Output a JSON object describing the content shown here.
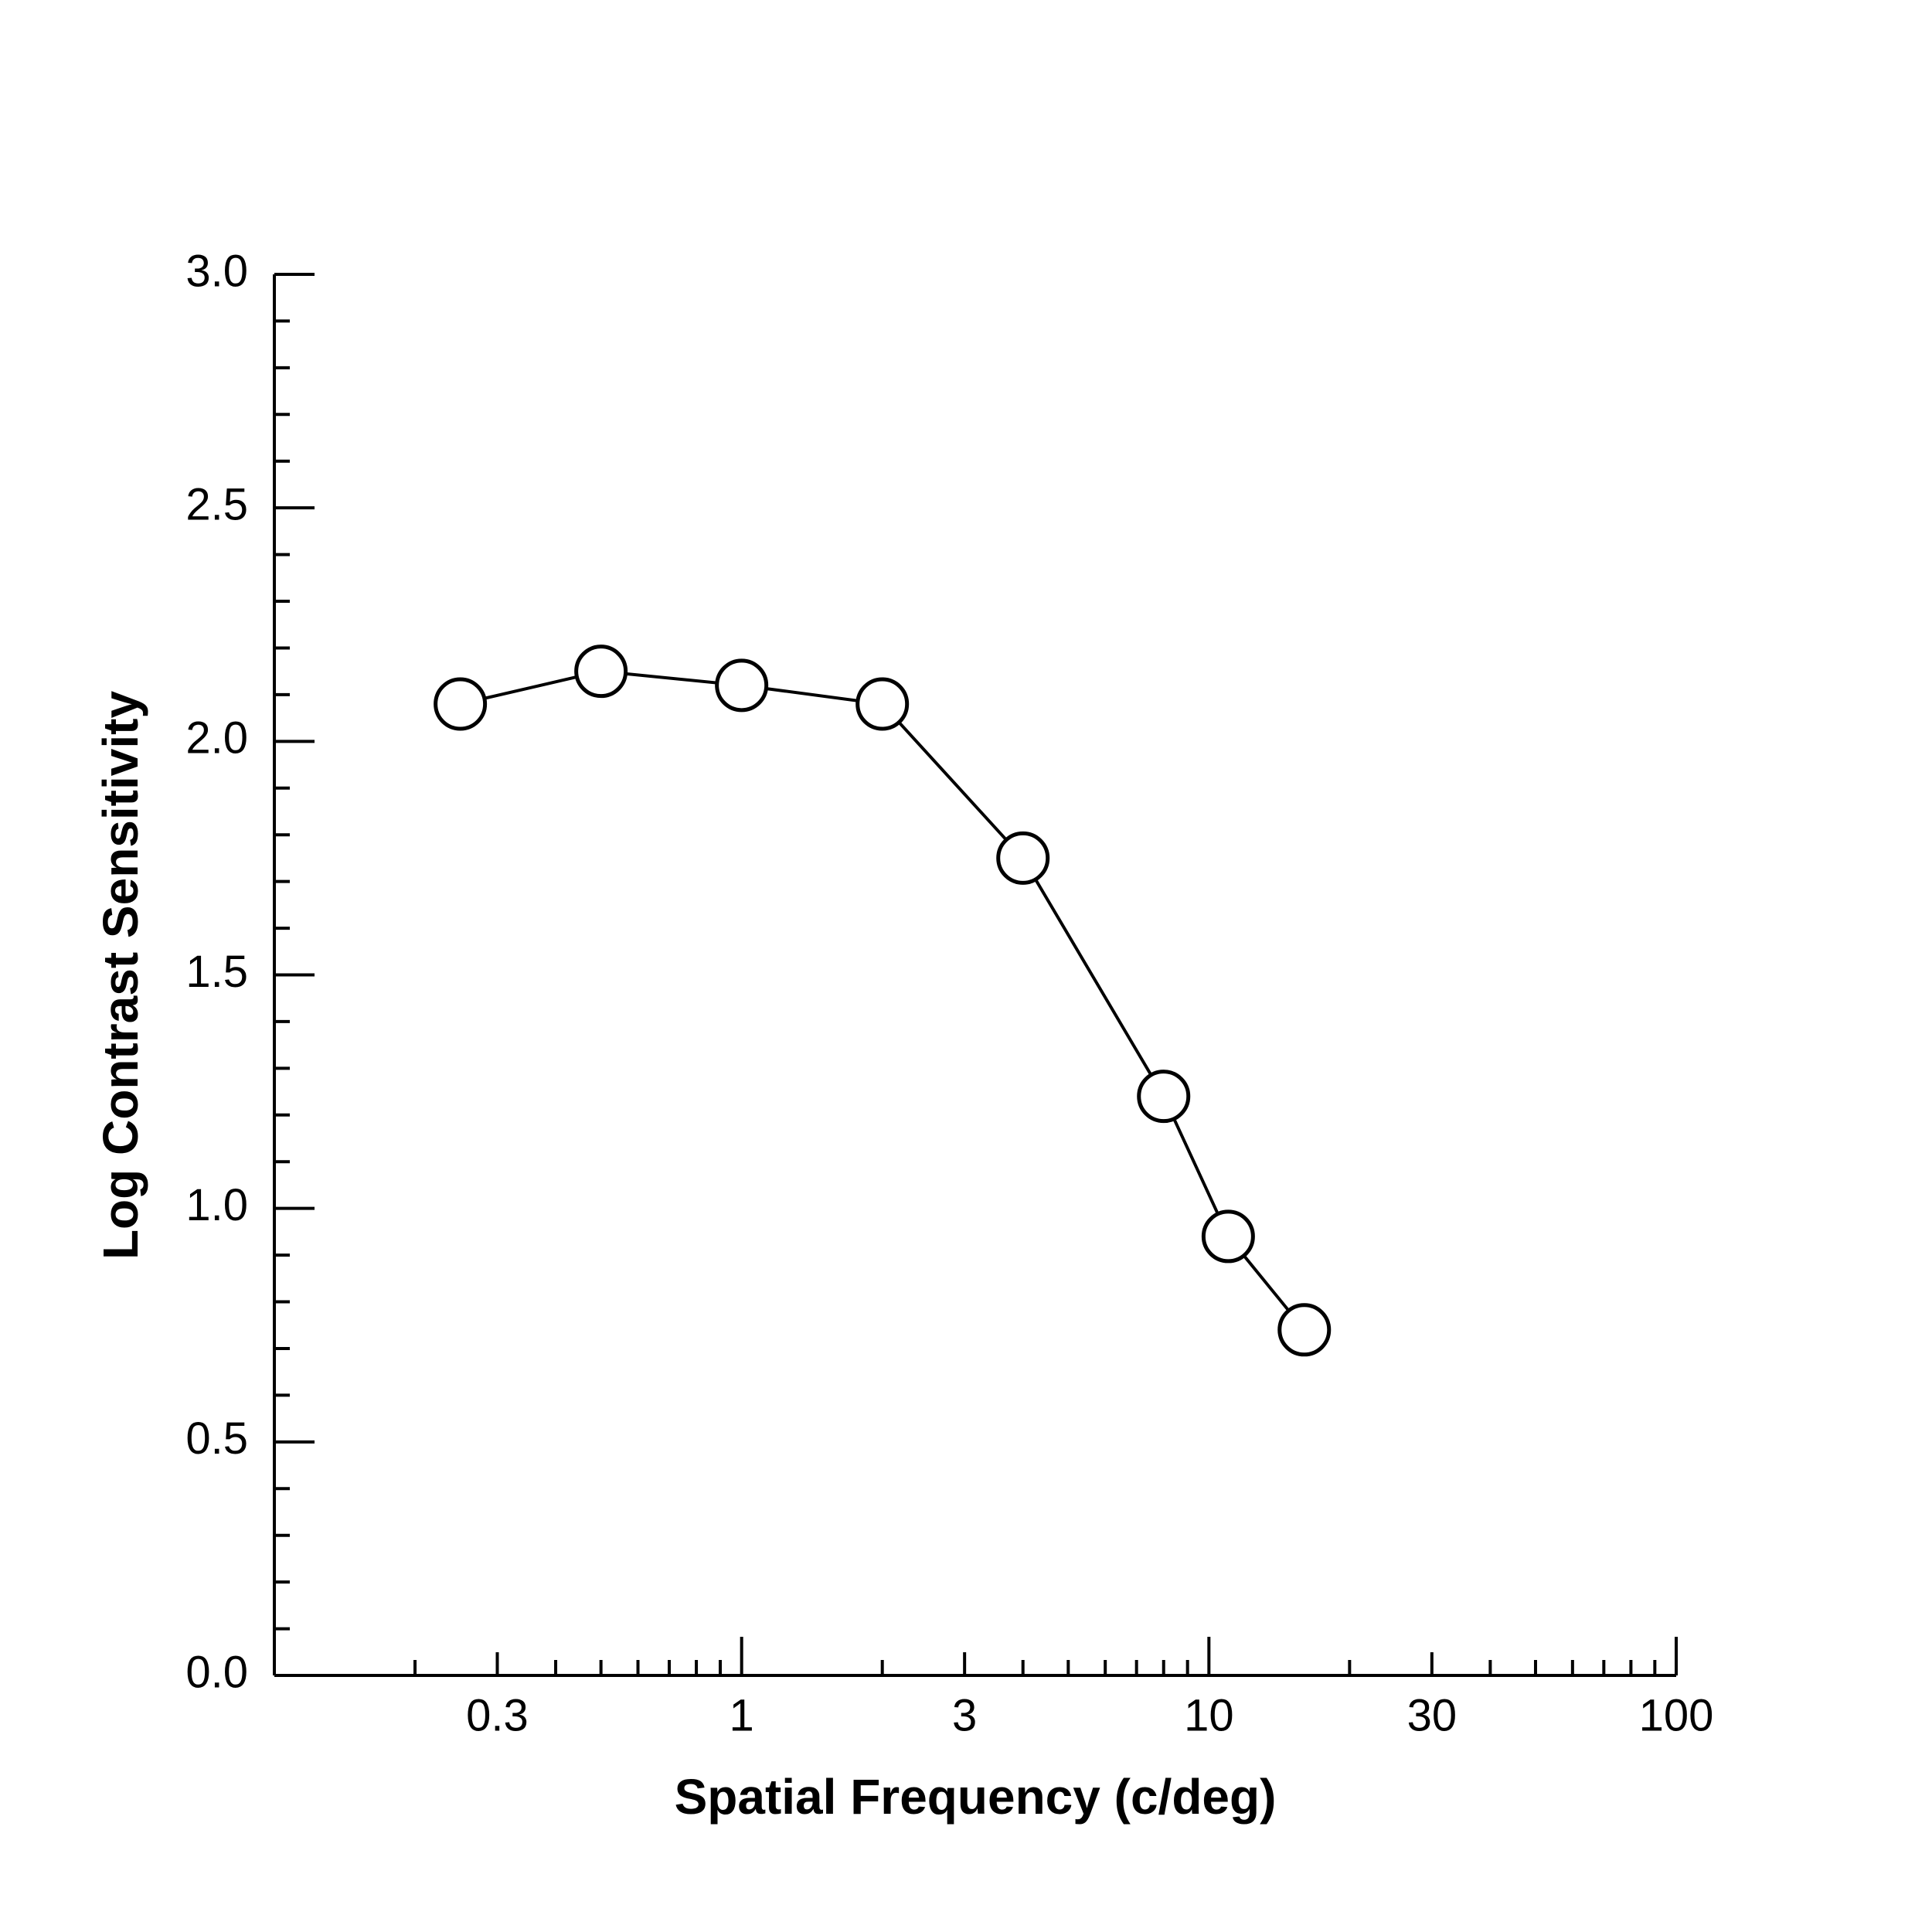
{
  "chart_data": {
    "type": "line",
    "x_label": "Spatial Frequency (c/deg)",
    "y_label": "Log Contrast Sensitivity",
    "x": [
      0.25,
      0.5,
      1,
      2,
      4,
      8,
      11,
      16
    ],
    "series": [
      {
        "color": "#000000",
        "values": [
          2.08,
          2.15,
          2.12,
          2.08,
          1.75,
          1.24,
          0.94,
          0.74
        ]
      }
    ],
    "xscale": "log",
    "xlim": [
      0.1,
      100
    ],
    "xticks": [
      0.3,
      1,
      3,
      10,
      30,
      100
    ],
    "xminorticks": [
      0.2,
      0.4,
      0.5,
      0.6,
      0.7,
      0.8,
      0.9,
      2,
      4,
      5,
      6,
      7,
      8,
      9,
      20,
      40,
      50,
      60,
      70,
      80,
      90
    ],
    "ylim": [
      0,
      3
    ],
    "yticks": [
      {
        "value": 0,
        "label": "0.0"
      },
      {
        "value": 0.5,
        "label": "0.5"
      },
      {
        "value": 1,
        "label": "1.0"
      },
      {
        "value": 1.5,
        "label": "1.5"
      },
      {
        "value": 2,
        "label": "2.0"
      },
      {
        "value": 2.5,
        "label": "2.5"
      },
      {
        "value": 3,
        "label": "3.0"
      }
    ],
    "yminorticks": [
      0.1,
      0.2,
      0.3,
      0.4,
      0.6,
      0.7,
      0.8,
      0.9,
      1.1,
      1.2,
      1.3,
      1.4,
      1.6,
      1.7,
      1.8,
      1.9,
      2.1,
      2.2,
      2.3,
      2.4,
      2.6,
      2.7,
      2.8,
      2.9
    ],
    "grid": false
  }
}
